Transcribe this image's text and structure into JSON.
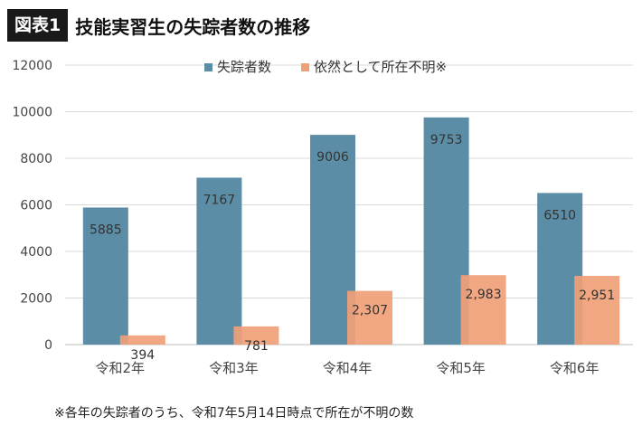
{
  "header": {
    "badge": "図表1",
    "title": "技能実習生の失踪者数の推移"
  },
  "footnote": "※各年の失踪者のうち、令和7年5月14日時点で所在が不明の数",
  "colors": {
    "series1": "#5b8ea6",
    "series2": "#f0a077",
    "gridline": "#d9d9d9",
    "axis_text": "#444444"
  },
  "chart_data": {
    "type": "bar",
    "title": "",
    "categories": [
      "令和2年",
      "令和3年",
      "令和4年",
      "令和5年",
      "令和6年"
    ],
    "series": [
      {
        "name": "失踪者数",
        "values": [
          5885,
          7167,
          9006,
          9753,
          6510
        ],
        "labels": [
          "5885",
          "7167",
          "9006",
          "9753",
          "6510"
        ]
      },
      {
        "name": "依然として所在不明※",
        "values": [
          394,
          781,
          2307,
          2983,
          2951
        ],
        "labels": [
          "394",
          "781",
          "2,307",
          "2,983",
          "2,951"
        ]
      }
    ],
    "yticks": [
      "0",
      "2000",
      "4000",
      "6000",
      "8000",
      "10000",
      "12000"
    ],
    "ylim": [
      0,
      12000
    ],
    "grid": true,
    "legend_position": "top"
  }
}
